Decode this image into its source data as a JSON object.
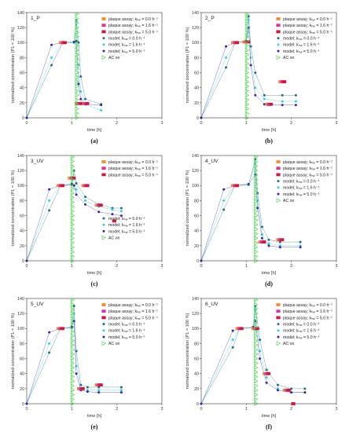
{
  "colors": {
    "plaque": [
      "#f28c28",
      "#e0309f",
      "#d4143c"
    ],
    "model": [
      "#1f6e7a",
      "#2fd0e6",
      "#3a22b0"
    ],
    "ac": "#38d438"
  },
  "legend_full": [
    {
      "kind": "plaque",
      "idx": 0,
      "label": "plaque assay; kₕₐₗ = 0.0 h⁻¹"
    },
    {
      "kind": "plaque",
      "idx": 1,
      "label": "plaque assay; kₕₐₗ = 1.6 h⁻¹"
    },
    {
      "kind": "plaque",
      "idx": 2,
      "label": "plaque assay; kₕₐₗ = 5.0 h⁻¹"
    },
    {
      "kind": "model",
      "idx": 0,
      "label": "model; kₕₐₗ = 0.0 h⁻¹"
    },
    {
      "kind": "model",
      "idx": 1,
      "label": "model; kₕₐₗ = 1.6 h⁻¹"
    },
    {
      "kind": "model",
      "idx": 2,
      "label": "model; kₕₐₗ = 5.0 h⁻¹"
    },
    {
      "kind": "ac",
      "idx": 0,
      "label": "AC on"
    }
  ],
  "legend_top": [
    {
      "kind": "plaque",
      "idx": 0,
      "label": "plaque assay; kₕₐₗ = 0.0 h⁻¹"
    },
    {
      "kind": "plaque",
      "idx": 1,
      "label": "plaque assay; kₕₐₗ = 1.6 h⁻¹"
    },
    {
      "kind": "plaque",
      "idx": 2,
      "label": "plaque assay; kₕₐₗ = 5.0 h⁻¹"
    }
  ],
  "legend_bottom": [
    {
      "kind": "model",
      "idx": 0,
      "label": "model; kₕₐₗ = 0.0 h⁻¹"
    },
    {
      "kind": "model",
      "idx": 1,
      "label": "model; kₕₐₗ = 1.6 h⁻¹"
    },
    {
      "kind": "model",
      "idx": 2,
      "label": "model; kₕₐₗ = 5.0 h⁻¹"
    },
    {
      "kind": "ac",
      "idx": 0,
      "label": "AC on"
    }
  ],
  "chart_data": [
    {
      "type": "scatter",
      "title": "1_P",
      "caption": "(a)",
      "xlabel": "time [h]",
      "ylabel": "normalized concentration (P1 = 100 %)",
      "xlim": [
        0,
        3
      ],
      "ylim": [
        0,
        140
      ],
      "xticks": [
        0,
        1,
        2,
        3
      ],
      "yticks": [
        0,
        20,
        40,
        60,
        80,
        100,
        120,
        140
      ],
      "ac_on": 1.1,
      "legend_layout": "full",
      "plaque": [
        [
          [
            0.8,
            100
          ],
          [
            1.15,
            19
          ],
          [
            1.3,
            19
          ]
        ],
        [
          [
            0.8,
            100
          ],
          [
            1.15,
            19
          ],
          [
            1.3,
            19
          ]
        ],
        [
          [
            0.8,
            100
          ],
          [
            1.15,
            19
          ],
          [
            1.3,
            19
          ]
        ]
      ],
      "model": [
        {
          "x": [
            0,
            0.55,
            0.8,
            1.05,
            1.1,
            1.15,
            1.2,
            1.3,
            1.65
          ],
          "y": [
            0,
            70,
            100,
            100,
            130,
            100,
            55,
            25,
            18
          ]
        },
        {
          "x": [
            0,
            0.55,
            0.8,
            1.05,
            1.1,
            1.15,
            1.2,
            1.3,
            1.65
          ],
          "y": [
            0,
            80,
            100,
            100,
            128,
            70,
            35,
            18,
            10
          ]
        },
        {
          "x": [
            0,
            0.55,
            0.8,
            1.05,
            1.1,
            1.15,
            1.2,
            1.3,
            1.65
          ],
          "y": [
            0,
            97,
            100,
            101,
            102,
            45,
            25,
            18,
            17
          ]
        }
      ]
    },
    {
      "type": "scatter",
      "title": "2_P",
      "caption": "(b)",
      "xlabel": "time [h]",
      "ylabel": "normalized concentration (P1 = 100 %)",
      "xlim": [
        0,
        3
      ],
      "ylim": [
        0,
        140
      ],
      "xticks": [
        0,
        1,
        2,
        3
      ],
      "yticks": [
        0,
        20,
        40,
        60,
        80,
        100,
        120,
        140
      ],
      "ac_on": 1.0,
      "legend_layout": "full",
      "plaque": [
        [
          [
            0.75,
            100
          ],
          [
            1.0,
            101
          ],
          [
            1.5,
            18
          ],
          [
            1.8,
            48
          ]
        ],
        [
          [
            0.75,
            100
          ],
          [
            1.0,
            101
          ],
          [
            1.5,
            18
          ],
          [
            1.8,
            48
          ]
        ],
        [
          [
            0.75,
            100
          ],
          [
            1.0,
            101
          ],
          [
            1.5,
            18
          ],
          [
            1.8,
            48
          ]
        ]
      ],
      "model": [
        {
          "x": [
            0,
            0.55,
            0.75,
            1.0,
            1.05,
            1.1,
            1.2,
            1.4,
            1.8,
            2.1
          ],
          "y": [
            0,
            67,
            100,
            101,
            135,
            95,
            60,
            30,
            30,
            30
          ]
        },
        {
          "x": [
            0,
            0.55,
            0.75,
            1.0,
            1.05,
            1.1,
            1.2,
            1.4,
            1.8,
            2.1
          ],
          "y": [
            0,
            80,
            100,
            101,
            130,
            80,
            40,
            25,
            22,
            22
          ]
        },
        {
          "x": [
            0,
            0.55,
            0.75,
            1.0,
            1.05,
            1.1,
            1.2,
            1.4,
            1.8,
            2.1
          ],
          "y": [
            0,
            95,
            100,
            102,
            120,
            70,
            30,
            18,
            17,
            17
          ]
        }
      ]
    },
    {
      "type": "scatter",
      "title": "3_UV",
      "caption": "(c)",
      "xlabel": "time [h]",
      "ylabel": "normalized concentration (P1 = 100 %)",
      "xlim": [
        0,
        3
      ],
      "ylim": [
        0,
        140
      ],
      "xticks": [
        0,
        1,
        2,
        3
      ],
      "yticks": [
        0,
        20,
        40,
        60,
        80,
        100,
        120,
        140
      ],
      "ac_on": 1.0,
      "legend_layout": "split",
      "plaque": [
        [
          [
            0.75,
            100
          ],
          [
            1.0,
            110
          ],
          [
            1.3,
            100
          ],
          [
            1.6,
            74
          ]
        ],
        [
          [
            0.75,
            100
          ],
          [
            1.0,
            110
          ],
          [
            1.3,
            100
          ],
          [
            1.6,
            74
          ]
        ],
        [
          [
            0.75,
            100
          ],
          [
            1.0,
            110
          ],
          [
            1.3,
            100
          ],
          [
            1.6,
            74
          ],
          [
            1.9,
            53
          ]
        ]
      ],
      "model": [
        {
          "x": [
            0,
            0.5,
            0.75,
            1.0,
            1.05,
            1.1,
            1.3,
            1.6,
            1.9,
            2.1
          ],
          "y": [
            0,
            67,
            100,
            101,
            120,
            103,
            85,
            75,
            70,
            70
          ]
        },
        {
          "x": [
            0,
            0.5,
            0.75,
            1.0,
            1.05,
            1.1,
            1.3,
            1.6,
            1.9,
            2.1
          ],
          "y": [
            0,
            80,
            100,
            101,
            110,
            95,
            80,
            72,
            68,
            66
          ]
        },
        {
          "x": [
            0,
            0.5,
            0.75,
            1.0,
            1.05,
            1.1,
            1.3,
            1.6,
            1.9,
            2.1
          ],
          "y": [
            0,
            95,
            100,
            102,
            100,
            88,
            75,
            65,
            62,
            60
          ]
        }
      ]
    },
    {
      "type": "scatter",
      "title": "4_UV",
      "caption": "(d)",
      "xlabel": "time [h]",
      "ylabel": "normalized concentration (P1 = 100 %)",
      "xlim": [
        0,
        3
      ],
      "ylim": [
        0,
        140
      ],
      "xticks": [
        0,
        1,
        2,
        3
      ],
      "yticks": [
        0,
        20,
        40,
        60,
        80,
        100,
        120,
        140
      ],
      "ac_on": 1.2,
      "legend_layout": "full",
      "plaque": [
        [
          [
            0.75,
            100
          ],
          [
            1.35,
            25
          ],
          [
            1.75,
            28
          ]
        ],
        [
          [
            0.75,
            100
          ],
          [
            1.35,
            25
          ],
          [
            1.75,
            28
          ]
        ],
        [
          [
            0.75,
            100
          ],
          [
            1.35,
            25
          ],
          [
            1.75,
            28
          ]
        ]
      ],
      "model": [
        {
          "x": [
            0,
            0.5,
            0.75,
            1.05,
            1.2,
            1.25,
            1.35,
            1.5,
            1.75,
            2.2
          ],
          "y": [
            0,
            68,
            100,
            101,
            135,
            90,
            45,
            28,
            25,
            25
          ]
        },
        {
          "x": [
            0,
            0.5,
            0.75,
            1.05,
            1.2,
            1.25,
            1.35,
            1.5,
            1.75,
            2.2
          ],
          "y": [
            0,
            80,
            100,
            101,
            130,
            80,
            35,
            23,
            20,
            20
          ]
        },
        {
          "x": [
            0,
            0.5,
            0.75,
            1.05,
            1.2,
            1.25,
            1.35,
            1.5,
            1.75,
            2.2
          ],
          "y": [
            0,
            95,
            100,
            102,
            115,
            70,
            30,
            20,
            18,
            18
          ]
        }
      ]
    },
    {
      "type": "scatter",
      "title": "5_UV",
      "caption": "(e)",
      "xlabel": "time [h]",
      "ylabel": "normalized concentration (P1 = 100 %)",
      "xlim": [
        0,
        3
      ],
      "ylim": [
        0,
        140
      ],
      "xticks": [
        0,
        1,
        2,
        3
      ],
      "yticks": [
        0,
        20,
        40,
        60,
        80,
        100,
        120,
        140
      ],
      "ac_on": 1.0,
      "legend_layout": "full",
      "plaque": [
        [
          [
            0.75,
            100
          ],
          [
            1.2,
            20
          ],
          [
            1.6,
            25
          ]
        ],
        [
          [
            0.75,
            100
          ],
          [
            1.2,
            20
          ],
          [
            1.6,
            25
          ]
        ],
        [
          [
            0.75,
            100
          ],
          [
            1.2,
            20
          ],
          [
            1.6,
            25
          ]
        ]
      ],
      "model": [
        {
          "x": [
            0,
            0.5,
            0.75,
            1.0,
            1.05,
            1.1,
            1.2,
            1.35,
            1.6,
            2.1
          ],
          "y": [
            0,
            68,
            100,
            101,
            130,
            70,
            25,
            22,
            22,
            22
          ]
        },
        {
          "x": [
            0,
            0.5,
            0.75,
            1.0,
            1.05,
            1.1,
            1.2,
            1.35,
            1.6,
            2.1
          ],
          "y": [
            0,
            80,
            100,
            101,
            120,
            50,
            20,
            18,
            18,
            18
          ]
        },
        {
          "x": [
            0,
            0.5,
            0.75,
            1.0,
            1.05,
            1.1,
            1.2,
            1.35,
            1.6,
            2.1
          ],
          "y": [
            0,
            95,
            100,
            102,
            110,
            40,
            18,
            16,
            15,
            15
          ]
        }
      ]
    },
    {
      "type": "scatter",
      "title": "6_UV",
      "caption": "(f)",
      "xlabel": "time [h]",
      "ylabel": "normalized concentration (P1 = 100 %)",
      "xlim": [
        0,
        3
      ],
      "ylim": [
        0,
        140
      ],
      "xticks": [
        0,
        1,
        2,
        3
      ],
      "yticks": [
        0,
        20,
        40,
        60,
        80,
        100,
        120,
        140
      ],
      "ac_on": 1.2,
      "legend_layout": "full",
      "plaque": [
        [
          [
            0.85,
            100
          ],
          [
            1.2,
            100
          ],
          [
            1.45,
            40
          ],
          [
            1.9,
            18
          ]
        ],
        [
          [
            0.85,
            100
          ],
          [
            1.2,
            100
          ],
          [
            1.45,
            40
          ],
          [
            1.9,
            18
          ]
        ],
        [
          [
            0.85,
            100
          ],
          [
            1.2,
            100
          ],
          [
            1.45,
            40
          ],
          [
            1.9,
            18
          ],
          [
            2.0,
            0
          ]
        ]
      ],
      "model": [
        {
          "x": [
            0,
            0.7,
            0.85,
            1.15,
            1.2,
            1.3,
            1.45,
            1.7,
            2.0,
            2.3
          ],
          "y": [
            0,
            75,
            100,
            101,
            130,
            85,
            45,
            25,
            20,
            20
          ]
        },
        {
          "x": [
            0,
            0.7,
            0.85,
            1.15,
            1.2,
            1.3,
            1.45,
            1.7,
            2.0,
            2.3
          ],
          "y": [
            0,
            85,
            100,
            101,
            125,
            70,
            35,
            20,
            15,
            15
          ]
        },
        {
          "x": [
            0,
            0.7,
            0.85,
            1.15,
            1.2,
            1.3,
            1.45,
            1.7,
            2.0,
            2.3
          ],
          "y": [
            0,
            97,
            100,
            102,
            110,
            60,
            28,
            18,
            15,
            15
          ]
        }
      ]
    }
  ]
}
